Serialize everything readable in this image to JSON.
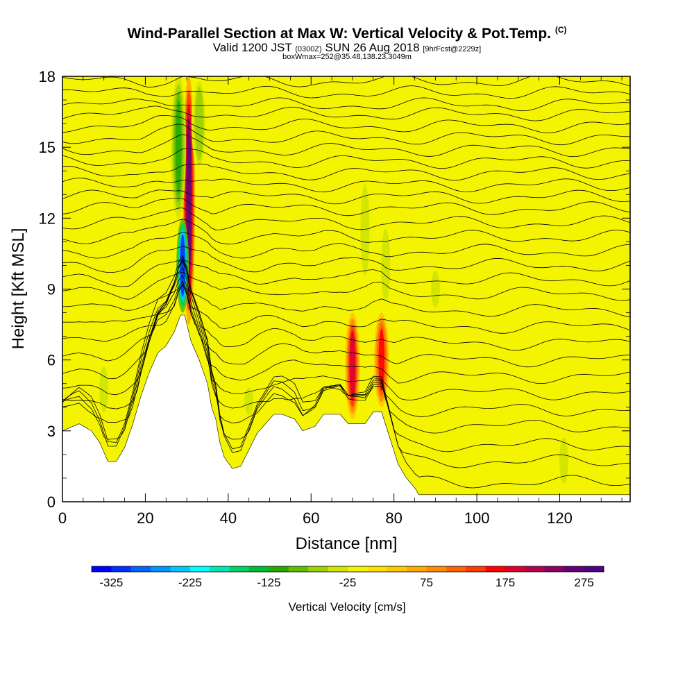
{
  "header": {
    "title": "Wind-Parallel Section at Max W: Vertical Velocity & Pot.Temp.",
    "title_tag": "(C)",
    "subtitle_a": "Valid 1200 JST",
    "subtitle_b": "(0300Z)",
    "subtitle_c": "SUN 26 Aug 2018",
    "subtitle_d": "[9hrFcst@2229z]",
    "subtitle_line2": "boxWmax=252@35.48,138.23,3049m"
  },
  "chart_data": {
    "type": "heatmap",
    "xlabel": "Distance [nm]",
    "ylabel": "Height [Kft MSL]",
    "xlim": [
      0,
      137
    ],
    "ylim": [
      0,
      18
    ],
    "xticks": [
      0,
      20,
      40,
      60,
      80,
      100,
      120
    ],
    "yticks": [
      0,
      3,
      6,
      9,
      12,
      15,
      18
    ],
    "background_value_color": "#f4f400",
    "colorbar": {
      "label": "Vertical Velocity [cm/s]",
      "ticks": [
        -325,
        -225,
        -125,
        -25,
        75,
        175,
        275
      ],
      "range": [
        -350,
        300
      ],
      "colors": [
        "#0000ff",
        "#0032ff",
        "#0064ff",
        "#0096ff",
        "#00c8ff",
        "#00ffff",
        "#00e6b4",
        "#00d264",
        "#00be32",
        "#28aa00",
        "#64be00",
        "#a0d200",
        "#d2e600",
        "#f4f400",
        "#ffe100",
        "#ffc800",
        "#ffaa00",
        "#ff8c00",
        "#ff6400",
        "#ff3c00",
        "#ff0000",
        "#dc0032",
        "#b40050",
        "#8c0064",
        "#640078",
        "#500082"
      ]
    },
    "terrain_kft": [
      [
        0,
        3.0
      ],
      [
        4,
        3.3
      ],
      [
        7,
        3.0
      ],
      [
        9,
        2.5
      ],
      [
        11,
        1.7
      ],
      [
        13,
        1.7
      ],
      [
        15,
        2.3
      ],
      [
        17,
        3.3
      ],
      [
        19,
        4.5
      ],
      [
        21,
        5.5
      ],
      [
        23,
        6.3
      ],
      [
        25,
        6.6
      ],
      [
        27,
        7.2
      ],
      [
        28.5,
        7.9
      ],
      [
        29.5,
        7.9
      ],
      [
        31,
        6.8
      ],
      [
        33,
        6.0
      ],
      [
        35,
        5.0
      ],
      [
        36,
        4.0
      ],
      [
        37,
        3.5
      ],
      [
        38,
        2.5
      ],
      [
        39,
        1.9
      ],
      [
        41,
        1.4
      ],
      [
        43,
        1.5
      ],
      [
        45,
        2.2
      ],
      [
        47,
        2.9
      ],
      [
        49,
        3.3
      ],
      [
        51,
        3.7
      ],
      [
        53,
        3.7
      ],
      [
        56,
        3.5
      ],
      [
        58,
        3.0
      ],
      [
        61,
        3.2
      ],
      [
        63,
        3.7
      ],
      [
        67,
        3.7
      ],
      [
        69,
        3.3
      ],
      [
        73,
        3.3
      ],
      [
        75,
        3.8
      ],
      [
        77,
        3.8
      ],
      [
        79,
        2.7
      ],
      [
        81,
        1.6
      ],
      [
        83,
        1.0
      ],
      [
        85,
        0.6
      ],
      [
        86,
        0.3
      ],
      [
        137,
        0.3
      ]
    ],
    "vertical_velocity_features": [
      {
        "type": "updraft",
        "x": 30.5,
        "y_from": 7.5,
        "y_to": 18,
        "peak_cm_s": 252
      },
      {
        "type": "downdraft",
        "x": 29,
        "y_from": 8,
        "y_to": 12,
        "peak_cm_s": -325
      },
      {
        "type": "downdraft",
        "x": 28,
        "y_from": 12,
        "y_to": 18,
        "peak_cm_s": -125
      },
      {
        "type": "downdraft",
        "x": 33,
        "y_from": 14,
        "y_to": 18,
        "peak_cm_s": -75
      },
      {
        "type": "updraft",
        "x": 70,
        "y_from": 3.5,
        "y_to": 8,
        "peak_cm_s": 175
      },
      {
        "type": "updraft",
        "x": 77,
        "y_from": 4,
        "y_to": 8,
        "peak_cm_s": 150
      },
      {
        "type": "downdraft",
        "x": 73,
        "y_from": 9,
        "y_to": 14,
        "peak_cm_s": -50
      },
      {
        "type": "downdraft",
        "x": 78,
        "y_from": 8,
        "y_to": 12,
        "peak_cm_s": -50
      },
      {
        "type": "downdraft",
        "x": 90,
        "y_from": 8,
        "y_to": 10,
        "peak_cm_s": -40
      },
      {
        "type": "downdraft",
        "x": 10,
        "y_from": 3.5,
        "y_to": 6,
        "peak_cm_s": -40
      },
      {
        "type": "downdraft",
        "x": 45,
        "y_from": 3.5,
        "y_to": 5,
        "peak_cm_s": -40
      },
      {
        "type": "downdraft",
        "x": 121,
        "y_from": 0.5,
        "y_to": 3,
        "peak_cm_s": -40
      }
    ],
    "isentrope_heights_kft": [
      0.8,
      1.7,
      2.4,
      3.2,
      3.9,
      4.6,
      5.3,
      6.0,
      6.7,
      7.4,
      8.1,
      8.8,
      9.4,
      10.0,
      10.6,
      11.2,
      11.8,
      12.4,
      12.9,
      13.4,
      13.9,
      14.4,
      14.9,
      15.4,
      15.9,
      16.4,
      16.8,
      17.3,
      17.8
    ]
  }
}
